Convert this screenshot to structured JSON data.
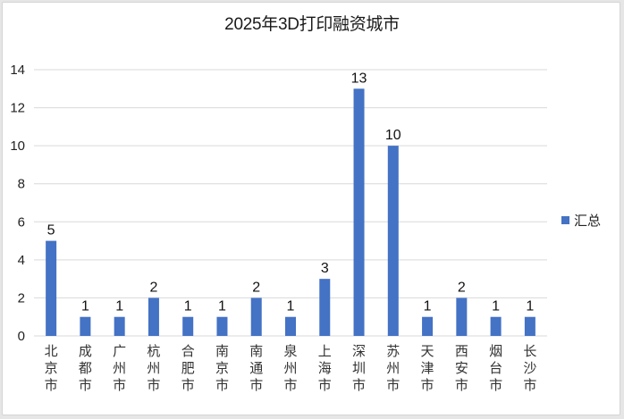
{
  "chart_data": {
    "type": "bar",
    "title": "2025年3D打印融资城市",
    "xlabel": "",
    "ylabel": "",
    "ylim": [
      0,
      14
    ],
    "yticks": [
      0,
      2,
      4,
      6,
      8,
      10,
      12,
      14
    ],
    "grid": true,
    "legend_position": "right",
    "categories": [
      "北京市",
      "成都市",
      "广州市",
      "杭州市",
      "合肥市",
      "南京市",
      "南通市",
      "泉州市",
      "上海市",
      "深圳市",
      "苏州市",
      "天津市",
      "西安市",
      "烟台市",
      "长沙市"
    ],
    "series": [
      {
        "name": "汇总",
        "color": "#4472c4",
        "values": [
          5,
          1,
          1,
          2,
          1,
          1,
          2,
          1,
          3,
          13,
          10,
          1,
          2,
          1,
          1
        ]
      }
    ],
    "data_labels": true
  },
  "colors": {
    "bar": "#4472c4",
    "grid": "#d9d9d9",
    "background": "#ffffff"
  }
}
